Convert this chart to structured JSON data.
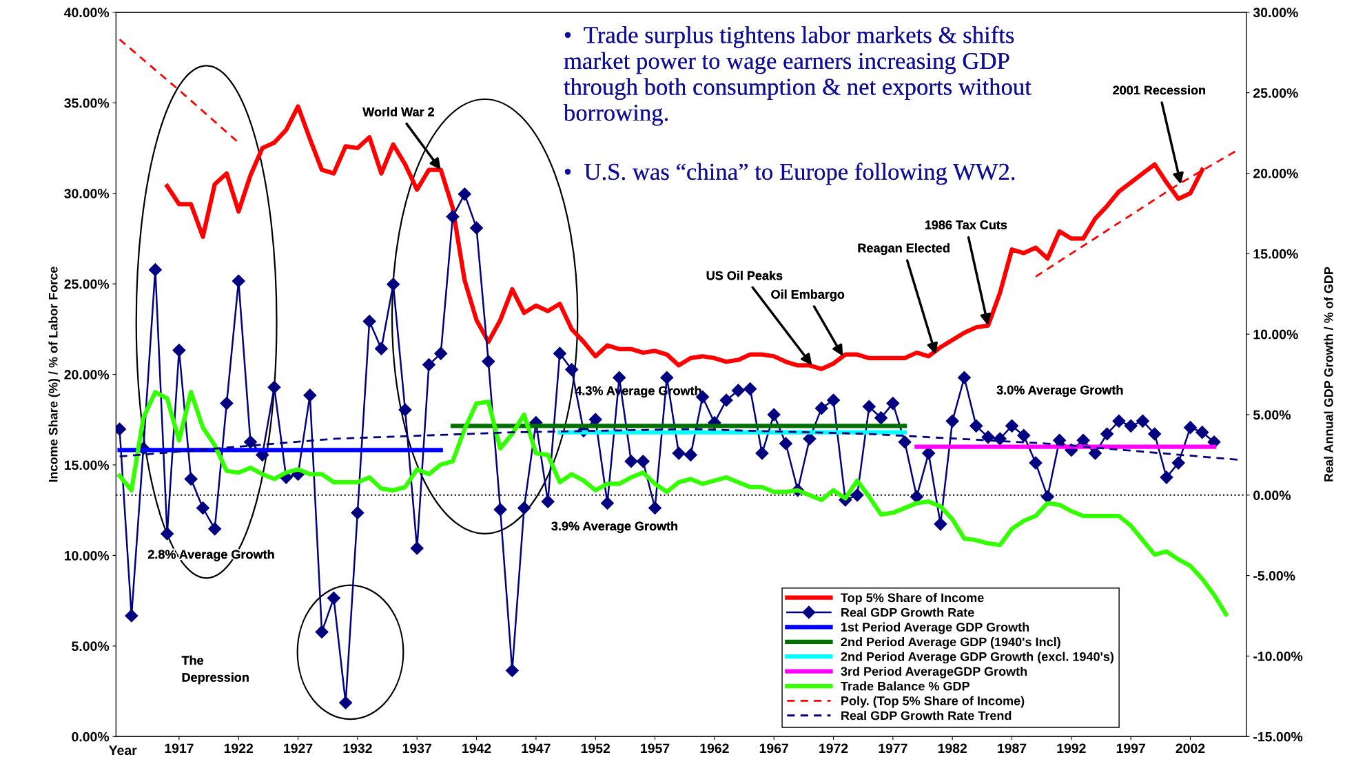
{
  "chart_data": {
    "type": "line",
    "xlabel": "Year",
    "ylabel": "Income Share (%) / % of Labor Force",
    "y2label": "Real Annual GDP Growth / % of GDP",
    "xlim": [
      1911.7,
      2006.7
    ],
    "xticks": [
      1917,
      1922,
      1927,
      1932,
      1937,
      1942,
      1947,
      1952,
      1957,
      1962,
      1967,
      1972,
      1977,
      1982,
      1987,
      1992,
      1997,
      2002
    ],
    "ylim": [
      0,
      40
    ],
    "yticks": [
      {
        "value": 0,
        "label": "0.00%"
      },
      {
        "value": 5,
        "label": "5.00%"
      },
      {
        "value": 10,
        "label": "10.00%"
      },
      {
        "value": 15,
        "label": "15.00%"
      },
      {
        "value": 20,
        "label": "20.00%"
      },
      {
        "value": 25,
        "label": "25.00%"
      },
      {
        "value": 30,
        "label": "30.00%"
      },
      {
        "value": 35,
        "label": "35.00%"
      },
      {
        "value": 40,
        "label": "40.00%"
      }
    ],
    "y2lim": [
      -15,
      30
    ],
    "y2ticks": [
      {
        "value": -15,
        "label": "-15.00%"
      },
      {
        "value": -10,
        "label": "-10.00%"
      },
      {
        "value": -5,
        "label": "-5.00%"
      },
      {
        "value": 0,
        "label": "0.00%"
      },
      {
        "value": 5,
        "label": "5.00%"
      },
      {
        "value": 10,
        "label": "10.00%"
      },
      {
        "value": 15,
        "label": "15.00%"
      },
      {
        "value": 20,
        "label": "20.00%"
      },
      {
        "value": 25,
        "label": "25.00%"
      },
      {
        "value": 30,
        "label": "30.00%"
      }
    ],
    "legend": "bottom right",
    "series": [
      {
        "name": "Top 5% Share of Income",
        "color": "#ff0000",
        "x": [
          1916,
          1917,
          1918,
          1919,
          1920,
          1921,
          1922,
          1923,
          1924,
          1925,
          1926,
          1927,
          1928,
          1929,
          1930,
          1931,
          1932,
          1933,
          1934,
          1935,
          1936,
          1937,
          1938,
          1939,
          1940,
          1941,
          1942,
          1943,
          1944,
          1945,
          1946,
          1947,
          1948,
          1949,
          1950,
          1951,
          1952,
          1953,
          1954,
          1955,
          1956,
          1957,
          1958,
          1959,
          1960,
          1961,
          1962,
          1963,
          1964,
          1965,
          1966,
          1967,
          1968,
          1969,
          1970,
          1971,
          1972,
          1973,
          1974,
          1975,
          1976,
          1977,
          1978,
          1979,
          1980,
          1981,
          1982,
          1983,
          1984,
          1985,
          1986,
          1987,
          1988,
          1989,
          1990,
          1991,
          1992,
          1993,
          1994,
          1995,
          1996,
          1997,
          1998,
          1999,
          2000,
          2001,
          2002,
          2003
        ],
        "values": [
          30.4,
          29.4,
          29.4,
          27.6,
          30.5,
          31.1,
          29.0,
          31.0,
          32.5,
          32.8,
          33.5,
          34.8,
          33.0,
          31.3,
          31.1,
          32.6,
          32.5,
          33.1,
          31.1,
          32.7,
          31.6,
          30.2,
          31.3,
          31.3,
          29.2,
          25.2,
          23.0,
          21.8,
          23.0,
          24.7,
          23.4,
          23.8,
          23.5,
          23.9,
          22.5,
          21.8,
          21.0,
          21.6,
          21.4,
          21.4,
          21.2,
          21.3,
          21.1,
          20.5,
          20.9,
          21.0,
          20.9,
          20.7,
          20.8,
          21.1,
          21.1,
          21.0,
          20.7,
          20.5,
          20.5,
          20.3,
          20.6,
          21.1,
          21.1,
          20.9,
          20.9,
          20.9,
          20.9,
          21.2,
          21.0,
          21.5,
          21.9,
          22.3,
          22.6,
          22.7,
          24.5,
          26.9,
          26.7,
          27.0,
          26.4,
          27.9,
          27.5,
          27.5,
          28.6,
          29.3,
          30.1,
          30.6,
          31.1,
          31.6,
          30.6,
          29.7,
          30.0,
          31.3
        ]
      },
      {
        "name": "Real GDP Growth Rate",
        "color": "#000080",
        "axis": "y2",
        "marker": "diamond",
        "x": [
          1912,
          1913,
          1914,
          1915,
          1916,
          1917,
          1918,
          1919,
          1920,
          1921,
          1922,
          1923,
          1924,
          1925,
          1926,
          1927,
          1928,
          1929,
          1930,
          1931,
          1932,
          1933,
          1934,
          1935,
          1936,
          1937,
          1938,
          1939,
          1940,
          1941,
          1942,
          1943,
          1944,
          1945,
          1946,
          1947,
          1948,
          1949,
          1950,
          1951,
          1952,
          1953,
          1954,
          1955,
          1956,
          1957,
          1958,
          1959,
          1960,
          1961,
          1962,
          1963,
          1964,
          1965,
          1966,
          1967,
          1968,
          1969,
          1970,
          1971,
          1972,
          1973,
          1974,
          1975,
          1976,
          1977,
          1978,
          1979,
          1980,
          1981,
          1982,
          1983,
          1984,
          1985,
          1986,
          1987,
          1988,
          1989,
          1990,
          1991,
          1992,
          1993,
          1994,
          1995,
          1996,
          1997,
          1998,
          1999,
          2000,
          2001,
          2002,
          2003,
          2004
        ],
        "values": [
          4.1,
          -7.5,
          2.9,
          14.0,
          -2.4,
          9.0,
          1.0,
          -0.8,
          -2.1,
          5.7,
          13.3,
          3.3,
          2.5,
          6.7,
          1.1,
          1.3,
          6.2,
          -8.5,
          -6.4,
          -12.9,
          -1.1,
          10.8,
          9.1,
          13.1,
          5.3,
          -3.3,
          8.1,
          8.8,
          17.3,
          18.7,
          16.6,
          8.3,
          -0.9,
          -10.9,
          -0.8,
          4.5,
          -0.4,
          8.8,
          7.8,
          4.0,
          4.7,
          -0.5,
          7.3,
          2.1,
          2.1,
          -0.8,
          7.3,
          2.6,
          2.5,
          6.1,
          4.5,
          5.9,
          6.5,
          6.6,
          2.6,
          5.0,
          3.2,
          0.3,
          3.5,
          5.4,
          5.9,
          -0.3,
          0.0,
          5.5,
          4.8,
          5.7,
          3.3,
          -0.1,
          2.6,
          -1.8,
          4.6,
          7.3,
          4.3,
          3.6,
          3.5,
          4.3,
          3.7,
          2.0,
          -0.1,
          3.4,
          2.8,
          3.4,
          2.6,
          3.8,
          4.6,
          4.3,
          4.6,
          3.8,
          1.1,
          2.0,
          4.2,
          3.9,
          3.3
        ]
      },
      {
        "name": "1st Period Average GDP Growth",
        "color": "#0000ff",
        "axis": "y2",
        "x": [
          1912,
          1939
        ],
        "values": [
          2.8,
          2.8
        ]
      },
      {
        "name": "2nd Period Average GDP (1940's Incl)",
        "color": "#007000",
        "axis": "y2",
        "x": [
          1940,
          1978
        ],
        "values": [
          4.3,
          4.3
        ]
      },
      {
        "name": "2nd Period Average GDP Growth (excl. 1940's)",
        "color": "#00ffff",
        "axis": "y2",
        "x": [
          1949,
          1978
        ],
        "values": [
          3.9,
          3.9
        ]
      },
      {
        "name": "3rd Period AverageGDP Growth",
        "color": "#ff00ff",
        "axis": "y2",
        "x": [
          1979,
          2004
        ],
        "values": [
          3.0,
          3.0
        ]
      },
      {
        "name": "Trade Balance % GDP",
        "color": "#33ff00",
        "axis": "y2",
        "x": [
          1912,
          1913,
          1914,
          1915,
          1916,
          1917,
          1918,
          1919,
          1920,
          1921,
          1922,
          1923,
          1924,
          1925,
          1926,
          1927,
          1928,
          1929,
          1930,
          1931,
          1932,
          1933,
          1934,
          1935,
          1936,
          1937,
          1938,
          1939,
          1940,
          1941,
          1942,
          1943,
          1944,
          1945,
          1946,
          1947,
          1948,
          1949,
          1950,
          1951,
          1952,
          1953,
          1954,
          1955,
          1956,
          1957,
          1958,
          1959,
          1960,
          1961,
          1962,
          1963,
          1964,
          1965,
          1966,
          1967,
          1968,
          1969,
          1970,
          1971,
          1972,
          1973,
          1974,
          1975,
          1976,
          1977,
          1978,
          1979,
          1980,
          1981,
          1982,
          1983,
          1984,
          1985,
          1986,
          1987,
          1988,
          1989,
          1990,
          1991,
          1992,
          1993,
          1994,
          1995,
          1996,
          1997,
          1998,
          1999,
          2000,
          2001,
          2002,
          2003,
          2004,
          2005
        ],
        "values": [
          1.2,
          0.3,
          4.8,
          6.4,
          6.0,
          3.4,
          6.4,
          4.2,
          3.1,
          1.5,
          1.4,
          1.7,
          1.3,
          1.0,
          1.4,
          1.6,
          1.3,
          1.3,
          0.8,
          0.8,
          0.8,
          1.1,
          0.4,
          0.3,
          0.5,
          1.6,
          1.3,
          1.9,
          2.1,
          4.1,
          5.7,
          5.8,
          2.9,
          3.8,
          5.0,
          2.6,
          2.5,
          0.8,
          1.3,
          0.9,
          0.3,
          0.7,
          0.7,
          1.1,
          1.4,
          0.7,
          0.2,
          0.8,
          1.0,
          0.7,
          0.9,
          1.1,
          0.8,
          0.5,
          0.5,
          0.2,
          0.2,
          0.3,
          0.0,
          -0.3,
          0.3,
          -0.2,
          0.9,
          -0.1,
          -1.2,
          -1.1,
          -0.8,
          -0.5,
          -0.4,
          -0.7,
          -1.5,
          -2.7,
          -2.8,
          -3.0,
          -3.1,
          -2.1,
          -1.6,
          -1.3,
          -0.5,
          -0.6,
          -1.0,
          -1.3,
          -1.3,
          -1.3,
          -1.3,
          -1.9,
          -2.8,
          -3.7,
          -3.5,
          -4.0,
          -4.4,
          -5.2,
          -6.2,
          -7.4
        ]
      },
      {
        "name": "Poly. (Top 5% Share of Income)",
        "color": "#ff0000",
        "line_style": "dashed",
        "x": [
          1912,
          1917,
          1922,
          1950,
          1989,
          1993,
          1997,
          2001,
          2006
        ],
        "values": [
          38.5,
          35.7,
          32.8,
          null,
          25.4,
          27.1,
          28.8,
          30.5,
          32.4
        ]
      },
      {
        "name": "Real GDP Growth Rate Trend",
        "color": "#000080",
        "axis": "y2",
        "line_style": "dashed",
        "x": [
          1912,
          1930,
          1945,
          1960,
          1975,
          1990,
          2006
        ],
        "values": [
          2.4,
          3.5,
          3.9,
          4.1,
          3.8,
          3.2,
          2.2
        ]
      }
    ],
    "ref_lines": [
      {
        "axis": "y2",
        "value": 0,
        "color": "#000000",
        "line_style": "dotted"
      }
    ],
    "annotations": [
      "•  Trade surplus tightens labor markets & shifts\nmarket power to wage earners increasing GDP\nthrough both consumption & net exports without\nborrowing.",
      "•  U.S. was “china” to Europe following WW2.",
      {
        "text": "World War 2",
        "x": 1939,
        "y": 31.3
      },
      {
        "text": "US Oil Peaks",
        "x": 1970.2,
        "y": 20.5
      },
      {
        "text": "Oil Embargo",
        "x": 1972.8,
        "y": 21.0
      },
      {
        "text": "Reagan Elected",
        "x": 1980.6,
        "y": 21.1
      },
      {
        "text": "1986 Tax Cuts",
        "x": 1985,
        "y": 22.7
      },
      {
        "text": "2001 Recession",
        "x": 2001.2,
        "y": 30.5
      },
      "The\nDepression",
      "2.8% Average Growth",
      "4.3% Average Growth",
      "3.9% Average Growth",
      "3.0% Average Growth"
    ]
  }
}
